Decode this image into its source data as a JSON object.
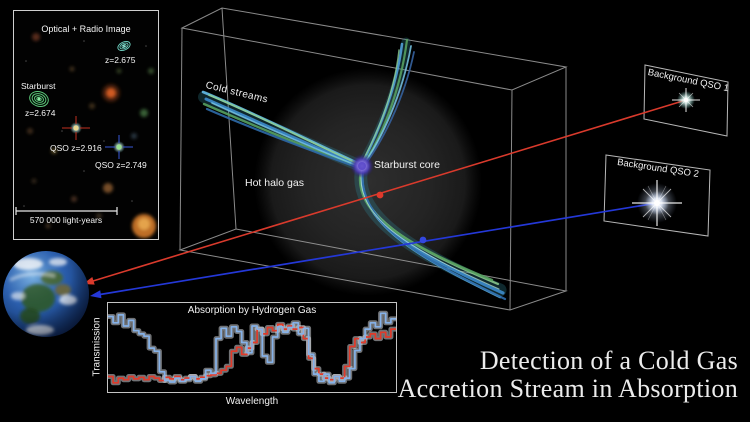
{
  "title_block": {
    "line1": "Detection of a Cold Gas",
    "line2": "Accretion Stream in Absorption"
  },
  "inset": {
    "title": "Optical + Radio Image",
    "labels": {
      "galaxy_z": "z=2.675",
      "starburst": "Starburst",
      "starburst_z": "z=2.674",
      "qso_a": "QSO z=2.916",
      "qso_b": "QSO z=2.749",
      "scale": "570 000 light-years"
    }
  },
  "diagram": {
    "cold_streams": "Cold streams",
    "hot_halo": "Hot halo gas",
    "starburst_core": "Starburst core",
    "qso_panel_1": "Background QSO 1",
    "qso_panel_2": "Background QSO 2",
    "colors": {
      "sightline_red": "#d93a2c",
      "sightline_blue": "#2438d8",
      "stream_blue": "#3b86c4",
      "stream_green": "#57a05f",
      "core_purple": "#7a68d8"
    }
  },
  "chart_data": {
    "type": "line",
    "title": "Absorption by Hydrogen Gas",
    "xlabel": "Wavelength",
    "ylabel": "Transmission",
    "ylim": [
      0,
      1
    ],
    "style": "step",
    "band_color": "#dfe3ea",
    "series": [
      {
        "name": "red_curve",
        "color": "#e13a2a",
        "values": [
          0.12,
          0.04,
          0.1,
          0.08,
          0.12,
          0.09,
          0.11,
          0.08,
          0.12,
          0.1,
          0.07,
          0.11,
          0.09,
          0.12,
          0.08,
          0.1,
          0.12,
          0.09,
          0.11,
          0.13,
          0.14,
          0.16,
          0.2,
          0.25,
          0.44,
          0.49,
          0.4,
          0.48,
          0.55,
          0.72,
          0.66,
          0.74,
          0.7,
          0.78,
          0.72,
          0.76,
          0.72,
          0.74,
          0.6,
          0.35,
          0.22,
          0.15,
          0.1,
          0.08,
          0.12,
          0.1,
          0.25,
          0.5,
          0.6,
          0.55,
          0.62,
          0.66,
          0.6,
          0.68,
          0.62,
          0.72
        ]
      },
      {
        "name": "blue_curve",
        "color": "#85b1e8",
        "values": [
          0.88,
          0.8,
          0.9,
          0.76,
          0.83,
          0.7,
          0.66,
          0.63,
          0.48,
          0.44,
          0.18,
          0.07,
          0.05,
          0.1,
          0.06,
          0.08,
          0.12,
          0.06,
          0.09,
          0.2,
          0.16,
          0.6,
          0.73,
          0.63,
          0.75,
          0.69,
          0.55,
          0.42,
          0.76,
          0.72,
          0.38,
          0.3,
          0.62,
          0.75,
          0.68,
          0.74,
          0.8,
          0.66,
          0.73,
          0.4,
          0.15,
          0.06,
          0.15,
          0.04,
          0.12,
          0.06,
          0.1,
          0.22,
          0.45,
          0.6,
          0.72,
          0.8,
          0.75,
          0.92,
          0.8,
          0.85
        ]
      }
    ]
  }
}
